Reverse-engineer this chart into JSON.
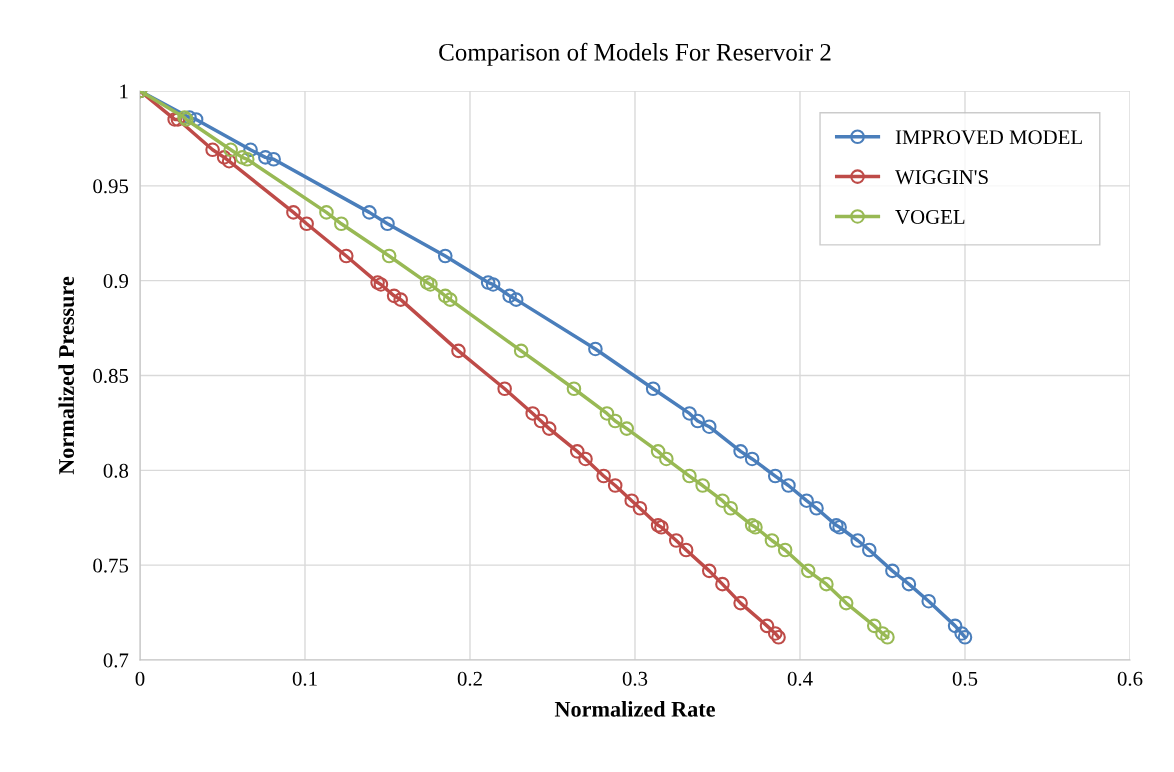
{
  "chart_data": {
    "type": "line",
    "title": "Comparison of Models For Reservoir 2",
    "xlabel": "Normalized Rate",
    "ylabel": "Normalized Pressure",
    "xlim": [
      0,
      0.6
    ],
    "xticks": [
      0,
      0.1,
      0.2,
      0.3,
      0.4,
      0.5,
      0.6
    ],
    "ylim": [
      0.7,
      1
    ],
    "yticks": [
      0.7,
      0.75,
      0.8,
      0.85,
      0.9,
      0.95,
      1
    ],
    "grid": true,
    "legend": "top right",
    "marker": "circle",
    "line_style": "solid",
    "series": [
      {
        "name": "IMPROVED MODEL",
        "color": "#4a7ebb",
        "x": [
          0,
          0.03,
          0.034,
          0.067,
          0.076,
          0.081,
          0.139,
          0.15,
          0.185,
          0.211,
          0.214,
          0.224,
          0.228,
          0.276,
          0.311,
          0.333,
          0.338,
          0.345,
          0.364,
          0.371,
          0.385,
          0.393,
          0.404,
          0.41,
          0.422,
          0.424,
          0.435,
          0.442,
          0.456,
          0.466,
          0.478,
          0.494,
          0.498,
          0.5
        ],
        "values": [
          1,
          0.986,
          0.985,
          0.969,
          0.965,
          0.964,
          0.936,
          0.93,
          0.913,
          0.899,
          0.898,
          0.892,
          0.89,
          0.864,
          0.843,
          0.83,
          0.826,
          0.823,
          0.81,
          0.806,
          0.797,
          0.792,
          0.784,
          0.78,
          0.771,
          0.77,
          0.763,
          0.758,
          0.747,
          0.74,
          0.731,
          0.718,
          0.714,
          0.712
        ]
      },
      {
        "name": "WIGGIN'S",
        "color": "#be4b48",
        "x": [
          0,
          0.021,
          0.023,
          0.044,
          0.051,
          0.054,
          0.093,
          0.101,
          0.125,
          0.144,
          0.146,
          0.154,
          0.158,
          0.193,
          0.221,
          0.238,
          0.243,
          0.248,
          0.265,
          0.27,
          0.281,
          0.288,
          0.298,
          0.303,
          0.314,
          0.316,
          0.325,
          0.331,
          0.345,
          0.353,
          0.364,
          0.38,
          0.385,
          0.387
        ],
        "values": [
          1,
          0.985,
          0.985,
          0.969,
          0.965,
          0.963,
          0.936,
          0.93,
          0.913,
          0.899,
          0.898,
          0.892,
          0.89,
          0.863,
          0.843,
          0.83,
          0.826,
          0.822,
          0.81,
          0.806,
          0.797,
          0.792,
          0.784,
          0.78,
          0.771,
          0.77,
          0.763,
          0.758,
          0.747,
          0.74,
          0.73,
          0.718,
          0.714,
          0.712
        ]
      },
      {
        "name": "VOGEL",
        "color": "#98b954",
        "x": [
          0,
          0.027,
          0.028,
          0.055,
          0.062,
          0.065,
          0.113,
          0.122,
          0.151,
          0.174,
          0.176,
          0.185,
          0.188,
          0.231,
          0.263,
          0.283,
          0.288,
          0.295,
          0.314,
          0.319,
          0.333,
          0.341,
          0.353,
          0.358,
          0.371,
          0.373,
          0.383,
          0.391,
          0.405,
          0.416,
          0.428,
          0.445,
          0.45,
          0.453
        ],
        "values": [
          1,
          0.986,
          0.985,
          0.969,
          0.965,
          0.964,
          0.936,
          0.93,
          0.913,
          0.899,
          0.898,
          0.892,
          0.89,
          0.863,
          0.843,
          0.83,
          0.826,
          0.822,
          0.81,
          0.806,
          0.797,
          0.792,
          0.784,
          0.78,
          0.771,
          0.77,
          0.763,
          0.758,
          0.747,
          0.74,
          0.73,
          0.718,
          0.714,
          0.712
        ]
      }
    ]
  }
}
